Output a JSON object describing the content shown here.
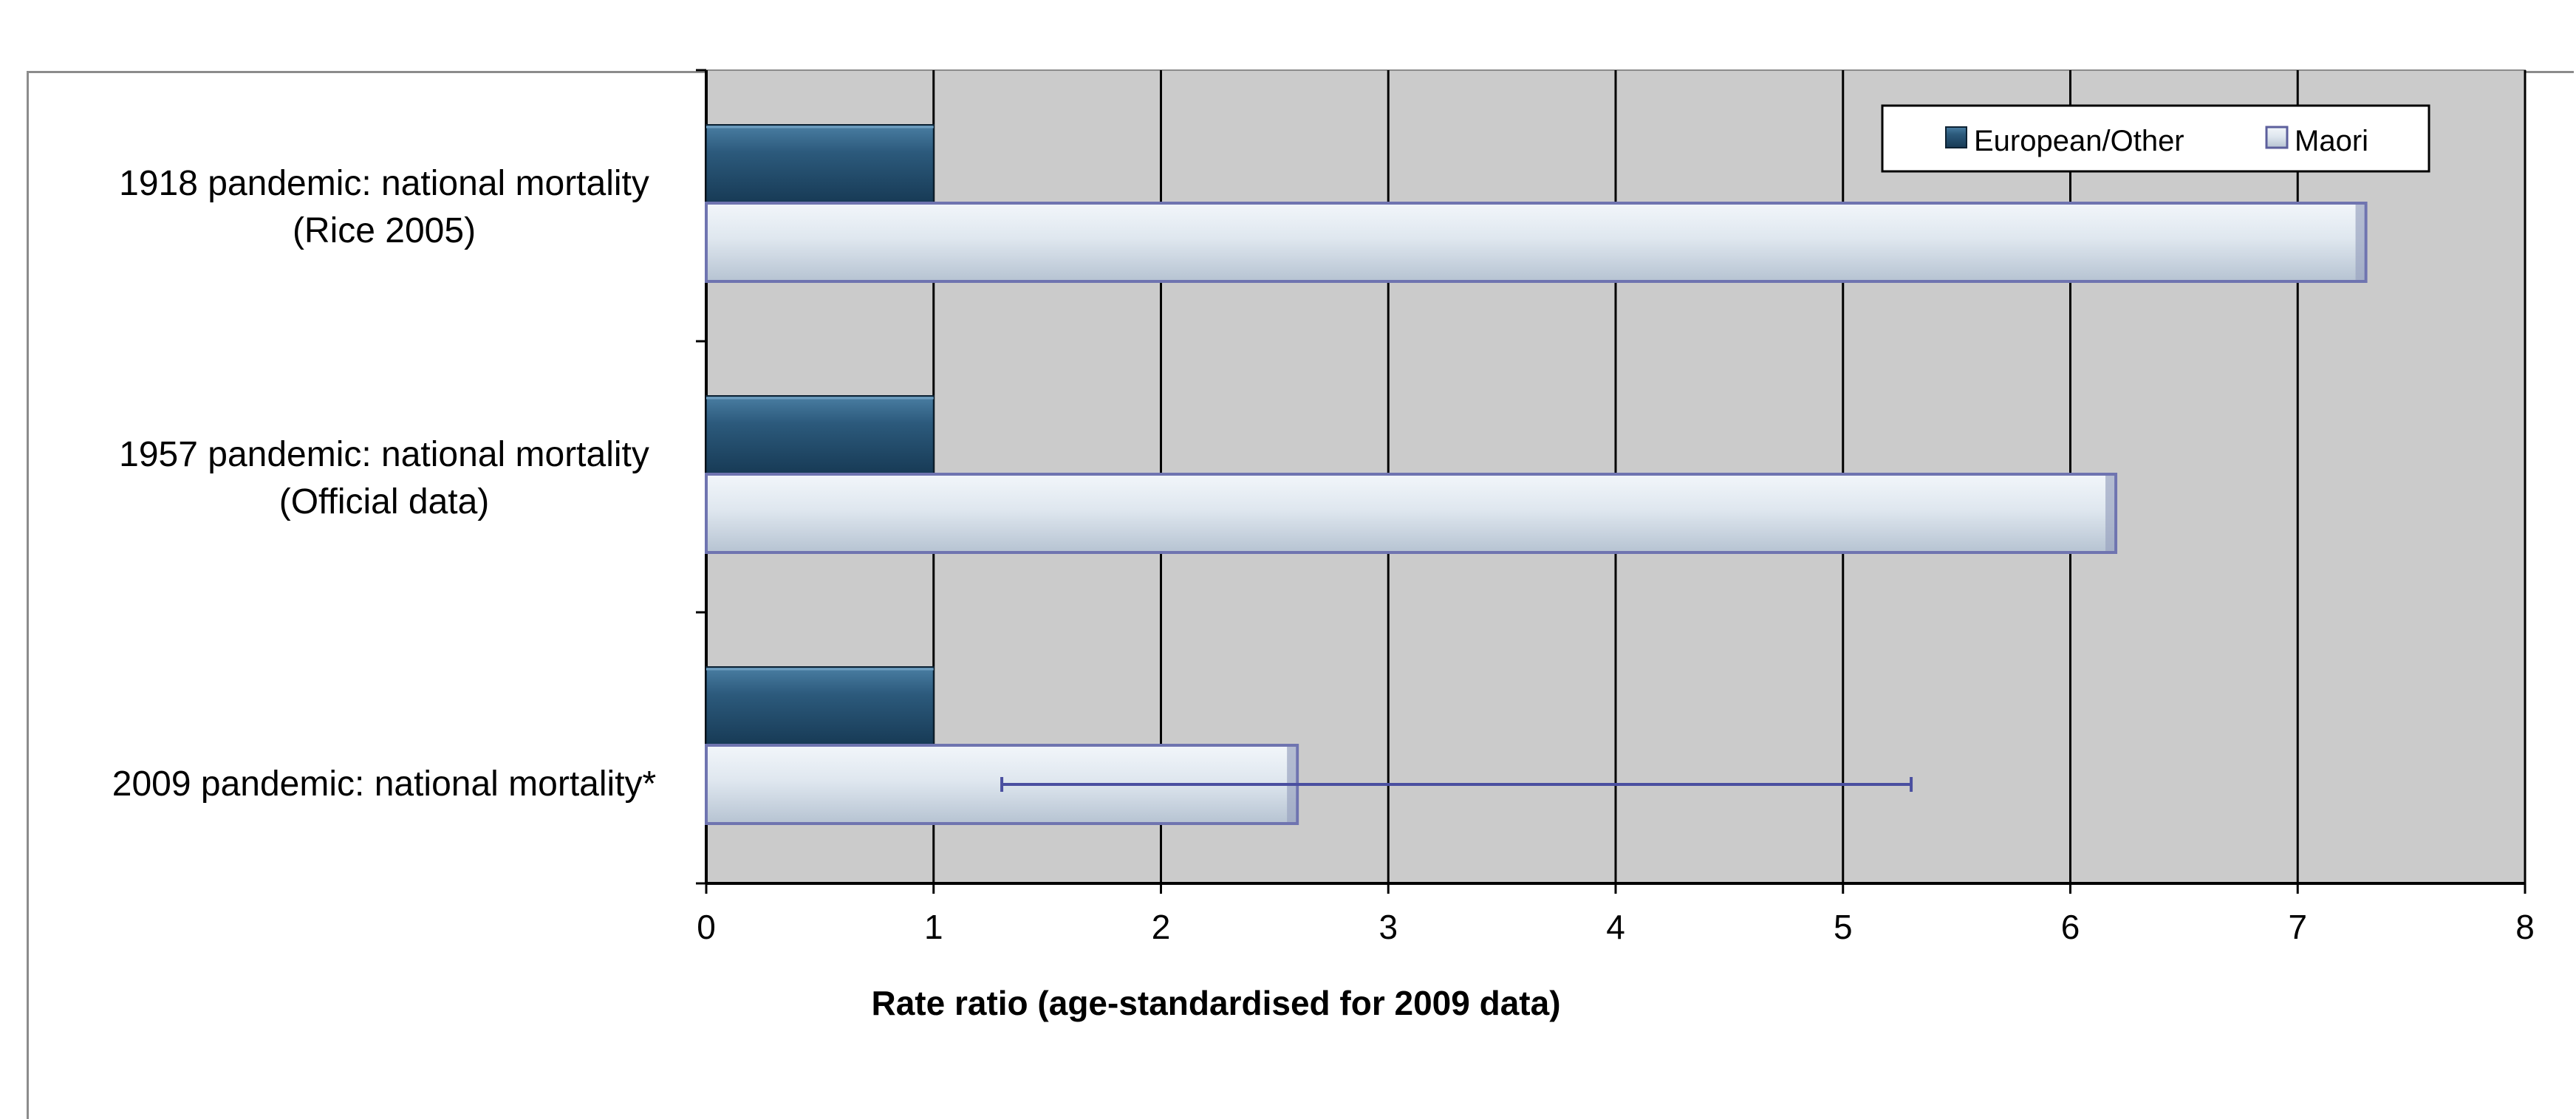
{
  "title_fragment": {
    "left": "(",
    "right": ")"
  },
  "colors": {
    "plot_bg": "#cbcbcb",
    "european": "#2a5677",
    "maori": "#dfe7ef",
    "maori_edge": "#6f74b0",
    "grid": "#000000"
  },
  "chart_data": {
    "type": "bar",
    "orientation": "horizontal",
    "categories": [
      [
        "1918 pandemic: national mortality",
        "(Rice 2005)"
      ],
      [
        "1957 pandemic: national mortality",
        "(Official data)"
      ],
      [
        "2009 pandemic: national mortality*"
      ]
    ],
    "series": [
      {
        "name": "European/Other",
        "values": [
          1,
          1,
          1
        ]
      },
      {
        "name": "Maori",
        "values": [
          7.3,
          6.2,
          2.6
        ],
        "error_bars": [
          null,
          null,
          {
            "low": 1.3,
            "high": 5.3
          }
        ]
      }
    ],
    "xlabel": "Rate ratio (age-standardised for 2009 data)",
    "xlim": [
      0,
      8
    ],
    "xticks": [
      "0",
      "1",
      "2",
      "3",
      "4",
      "5",
      "6",
      "7",
      "8"
    ],
    "grid": "vertical",
    "legend_position": "top-right"
  }
}
